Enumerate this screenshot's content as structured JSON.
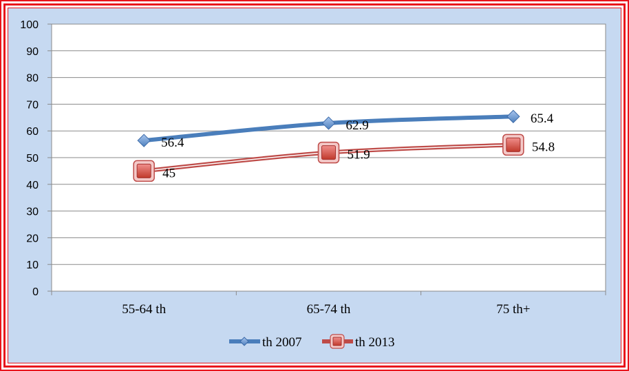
{
  "chart_data": {
    "type": "line",
    "categories": [
      "55-64 th",
      "65-74 th",
      "75 th+"
    ],
    "ylim": [
      0,
      100
    ],
    "yticks": [
      0,
      10,
      20,
      30,
      40,
      50,
      60,
      70,
      80,
      90,
      100
    ],
    "grid": true,
    "legend_position": "bottom",
    "series": [
      {
        "name": "th 2007",
        "values": [
          56.4,
          62.9,
          65.4
        ],
        "labels": [
          "56.4",
          "62.9",
          "65.4"
        ],
        "color": "#4a7ebb",
        "marker": "diamond"
      },
      {
        "name": "th 2013",
        "values": [
          45,
          51.9,
          54.8
        ],
        "labels": [
          "45",
          "51.9",
          "54.8"
        ],
        "color": "#be4b48",
        "marker": "square"
      }
    ],
    "colors": {
      "background": "#c6d9f1",
      "plot_area": "#ffffff",
      "border": "#e8141c",
      "gridline": "#8a8a8a"
    }
  }
}
